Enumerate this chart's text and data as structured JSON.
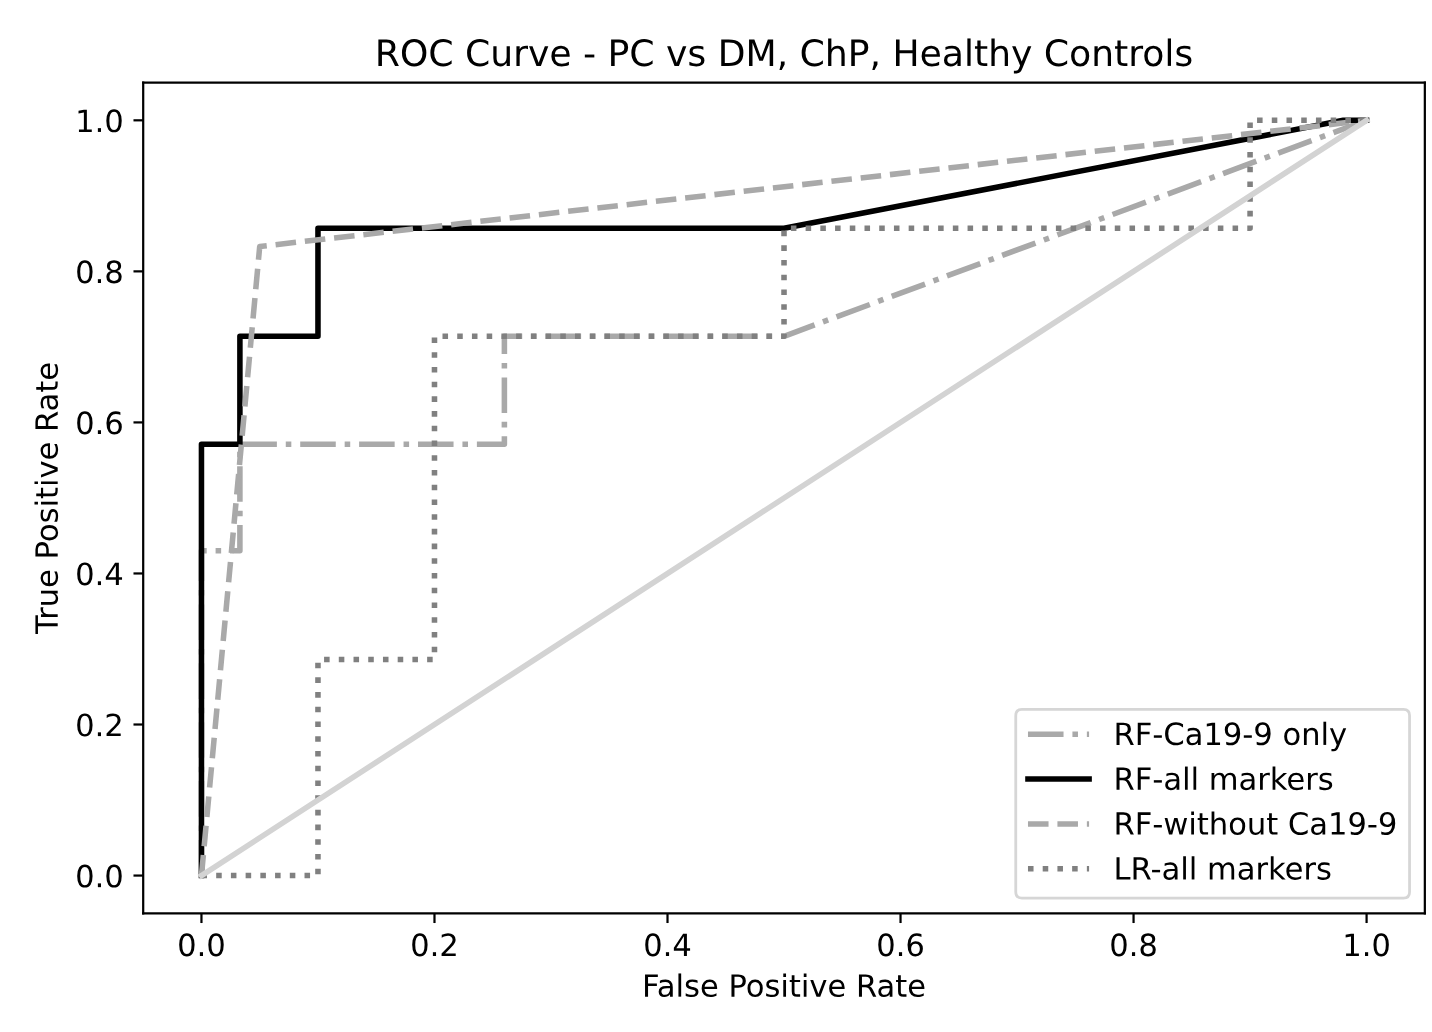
{
  "chart_data": {
    "type": "line",
    "title": "ROC Curve - PC vs DM, ChP, Healthy Controls",
    "xlabel": "False Positive Rate",
    "ylabel": "True Positive Rate",
    "xlim": [
      -0.05,
      1.05
    ],
    "ylim": [
      -0.05,
      1.05
    ],
    "xticks": [
      {
        "value": 0,
        "label": "0.0"
      },
      0.2,
      0.4,
      0.6,
      0.8,
      {
        "value": 1,
        "label": "1.0"
      }
    ],
    "yticks": [
      {
        "value": 0,
        "label": "0.0"
      },
      0.2,
      0.4,
      0.6,
      0.8,
      {
        "value": 1,
        "label": "1.0"
      }
    ],
    "grid": false,
    "legend": "bottom right",
    "series": [
      {
        "name": "RF-Ca19-9 only",
        "color": "#a9a9a9",
        "line_style": "dashdot",
        "x": [
          0,
          0,
          0.033,
          0.033,
          0.26,
          0.26,
          0.5,
          1.0
        ],
        "values": [
          0,
          0.43,
          0.43,
          0.571,
          0.571,
          0.714,
          0.714,
          1.0
        ]
      },
      {
        "name": "RF-all markers",
        "color": "#000000",
        "line_style": "solid",
        "x": [
          0,
          0,
          0.033,
          0.033,
          0.1,
          0.1,
          0.5,
          0.98,
          1.0
        ],
        "values": [
          0,
          0.571,
          0.571,
          0.714,
          0.714,
          0.857,
          0.857,
          1.0,
          1.0
        ]
      },
      {
        "name": "RF-without Ca19-9",
        "color": "#a9a9a9",
        "line_style": "dashed",
        "x": [
          0,
          0.05,
          1.0
        ],
        "values": [
          0,
          0.833,
          1.0
        ]
      },
      {
        "name": "LR-all markers",
        "color": "#808080",
        "line_style": "dotted",
        "x": [
          0,
          0.1,
          0.1,
          0.2,
          0.2,
          0.5,
          0.5,
          0.9,
          0.9,
          1.0
        ],
        "values": [
          0,
          0,
          0.286,
          0.286,
          0.714,
          0.714,
          0.857,
          0.857,
          1.0,
          1.0
        ]
      },
      {
        "color": "#d3d3d3",
        "line_style": "solid",
        "x": [
          0,
          1.0
        ],
        "values": [
          0,
          1.0
        ]
      }
    ]
  }
}
